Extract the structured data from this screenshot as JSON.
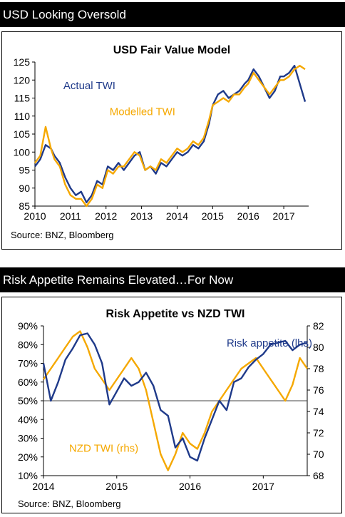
{
  "panels": [
    {
      "header": "USD Looking Oversold",
      "source": "Source: BNZ, Bloomberg"
    },
    {
      "header": "Risk Appetite Remains Elevated…For Now",
      "source": "Source: BNZ, Bloomberg"
    }
  ],
  "colors": {
    "actual": "#1f3a8a",
    "modelled": "#f5a800",
    "header_bg": "#000000"
  },
  "chart_data": [
    {
      "type": "line",
      "title": "USD Fair Value Model",
      "xlabel": "",
      "ylabel": "",
      "xlim": [
        2010,
        2017.7
      ],
      "ylim": [
        85,
        125
      ],
      "x_ticks": [
        2010,
        2011,
        2012,
        2013,
        2014,
        2015,
        2016,
        2017
      ],
      "y_ticks": [
        85,
        90,
        95,
        100,
        105,
        110,
        115,
        120,
        125
      ],
      "grid": false,
      "legend": "inline labels",
      "series": [
        {
          "name": "Actual TWI",
          "color": "#1f3a8a",
          "x": [
            2010.0,
            2010.15,
            2010.3,
            2010.45,
            2010.55,
            2010.7,
            2010.85,
            2011.0,
            2011.15,
            2011.3,
            2011.45,
            2011.6,
            2011.75,
            2011.9,
            2012.05,
            2012.2,
            2012.35,
            2012.5,
            2012.65,
            2012.8,
            2012.95,
            2013.1,
            2013.25,
            2013.4,
            2013.55,
            2013.7,
            2013.85,
            2014.0,
            2014.15,
            2014.3,
            2014.45,
            2014.6,
            2014.75,
            2014.9,
            2015.0,
            2015.15,
            2015.3,
            2015.45,
            2015.6,
            2015.75,
            2015.9,
            2016.0,
            2016.15,
            2016.3,
            2016.45,
            2016.6,
            2016.75,
            2016.9,
            2017.0,
            2017.15,
            2017.3,
            2017.45,
            2017.6
          ],
          "y": [
            96,
            98,
            102,
            101,
            99,
            97,
            93,
            90,
            88,
            89,
            86,
            88,
            92,
            91,
            96,
            95,
            97,
            95,
            97,
            99,
            100,
            95,
            96,
            94,
            97,
            96,
            98,
            100,
            99,
            100,
            102,
            101,
            103,
            108,
            113,
            116,
            117,
            115,
            116,
            117,
            119,
            120,
            123,
            121,
            118,
            115,
            117,
            121,
            121,
            122,
            124,
            119,
            114
          ]
        },
        {
          "name": "Modelled TWI",
          "color": "#f5a800",
          "x": [
            2010.0,
            2010.15,
            2010.3,
            2010.45,
            2010.55,
            2010.7,
            2010.85,
            2011.0,
            2011.15,
            2011.3,
            2011.45,
            2011.6,
            2011.75,
            2011.9,
            2012.05,
            2012.2,
            2012.35,
            2012.5,
            2012.65,
            2012.8,
            2012.95,
            2013.1,
            2013.25,
            2013.4,
            2013.55,
            2013.7,
            2013.85,
            2014.0,
            2014.15,
            2014.3,
            2014.45,
            2014.6,
            2014.75,
            2014.9,
            2015.0,
            2015.15,
            2015.3,
            2015.45,
            2015.6,
            2015.75,
            2015.9,
            2016.0,
            2016.15,
            2016.3,
            2016.45,
            2016.6,
            2016.75,
            2016.9,
            2017.0,
            2017.15,
            2017.3,
            2017.45,
            2017.6
          ],
          "y": [
            97,
            99,
            107,
            101,
            98,
            96,
            91,
            88,
            87,
            87,
            85,
            87,
            91,
            90,
            95,
            94,
            96,
            96,
            98,
            100,
            99,
            95,
            96,
            95,
            98,
            97,
            99,
            101,
            100,
            101,
            103,
            102,
            104,
            109,
            113,
            114,
            115,
            114,
            116,
            116,
            118,
            119,
            122,
            120,
            118,
            116,
            118,
            120,
            120,
            121,
            123,
            124,
            123
          ]
        }
      ],
      "annotations": [
        {
          "text": "Actual TWI",
          "x": 2010.8,
          "y": 117.5,
          "color": "#1f3a8a"
        },
        {
          "text": "Modelled TWI",
          "x": 2012.1,
          "y": 110.2,
          "color": "#f5a800"
        }
      ]
    },
    {
      "type": "line",
      "title": "Risk Appetite vs NZD TWI",
      "xlabel": "",
      "ylabel": "",
      "xlim": [
        2014,
        2017.6
      ],
      "ylim_left": [
        10,
        90
      ],
      "ylim_right": [
        68,
        82
      ],
      "x_ticks": [
        2014,
        2015,
        2016,
        2017
      ],
      "y_ticks_left": [
        "10%",
        "20%",
        "30%",
        "40%",
        "50%",
        "60%",
        "70%",
        "80%",
        "90%"
      ],
      "y_ticks_right": [
        68,
        70,
        72,
        74,
        76,
        78,
        80,
        82
      ],
      "reference_line_left": 50,
      "grid": false,
      "legend": "inline labels",
      "series": [
        {
          "name": "Risk appetite (lhs)",
          "axis": "left",
          "color": "#1f3a8a",
          "x": [
            2014.0,
            2014.1,
            2014.2,
            2014.3,
            2014.4,
            2014.5,
            2014.6,
            2014.7,
            2014.8,
            2014.9,
            2015.0,
            2015.1,
            2015.2,
            2015.3,
            2015.4,
            2015.5,
            2015.6,
            2015.7,
            2015.8,
            2015.9,
            2016.0,
            2016.1,
            2016.2,
            2016.3,
            2016.4,
            2016.5,
            2016.6,
            2016.7,
            2016.8,
            2016.9,
            2017.0,
            2017.1,
            2017.2,
            2017.3,
            2017.4,
            2017.5,
            2017.6
          ],
          "y": [
            70,
            50,
            60,
            72,
            78,
            85,
            86,
            80,
            70,
            48,
            55,
            62,
            58,
            60,
            65,
            58,
            45,
            42,
            25,
            30,
            20,
            18,
            30,
            40,
            50,
            45,
            60,
            62,
            68,
            72,
            75,
            80,
            81,
            82,
            77,
            80,
            81
          ]
        },
        {
          "name": "NZD TWI (rhs)",
          "axis": "right",
          "color": "#f5a800",
          "x": [
            2014.0,
            2014.1,
            2014.2,
            2014.3,
            2014.4,
            2014.5,
            2014.6,
            2014.7,
            2014.8,
            2014.9,
            2015.0,
            2015.1,
            2015.2,
            2015.3,
            2015.4,
            2015.5,
            2015.6,
            2015.7,
            2015.8,
            2015.9,
            2016.0,
            2016.1,
            2016.2,
            2016.3,
            2016.4,
            2016.5,
            2016.6,
            2016.7,
            2016.8,
            2016.9,
            2017.0,
            2017.1,
            2017.2,
            2017.3,
            2017.4,
            2017.5,
            2017.6
          ],
          "y": [
            77,
            78,
            79,
            80,
            81,
            81.5,
            80,
            78,
            77,
            76,
            77,
            78,
            79,
            78,
            76,
            73,
            70,
            68.5,
            70,
            72,
            71,
            70.5,
            72,
            74,
            75,
            76,
            77,
            78,
            78.5,
            79,
            78,
            77,
            76,
            75,
            76.5,
            79,
            78
          ]
        }
      ],
      "annotations": [
        {
          "text": "Risk appetite (lhs)",
          "x": 2016.5,
          "y": 79,
          "axis": "left",
          "color": "#1f3a8a"
        },
        {
          "text": "NZD TWI (rhs)",
          "x": 2014.35,
          "y": 22.8,
          "axis": "left",
          "color": "#f5a800"
        }
      ]
    }
  ]
}
